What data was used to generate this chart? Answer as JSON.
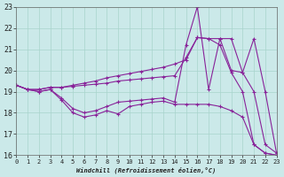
{
  "xlabel": "Windchill (Refroidissement éolien,°C)",
  "background_color": "#cbe9e9",
  "grid_color": "#a8d4cc",
  "line_color": "#882299",
  "xlim": [
    0,
    23
  ],
  "ylim": [
    16,
    23
  ],
  "xticks": [
    0,
    1,
    2,
    3,
    4,
    5,
    6,
    7,
    8,
    9,
    10,
    11,
    12,
    13,
    14,
    15,
    16,
    17,
    18,
    19,
    20,
    21,
    22,
    23
  ],
  "yticks": [
    16,
    17,
    18,
    19,
    20,
    21,
    22,
    23
  ],
  "line1_x": [
    0,
    1,
    2,
    3,
    4,
    5,
    6,
    7,
    8,
    9,
    10,
    11,
    12,
    13,
    14,
    15,
    16,
    17,
    18,
    19,
    20,
    21,
    22,
    23
  ],
  "line1_y": [
    19.3,
    19.1,
    19.1,
    19.2,
    19.2,
    19.3,
    19.4,
    19.5,
    19.65,
    19.75,
    19.85,
    19.95,
    20.05,
    20.15,
    20.3,
    20.5,
    21.55,
    21.5,
    21.5,
    20.0,
    19.9,
    21.5,
    19.0,
    16.1
  ],
  "line2_x": [
    0,
    1,
    2,
    3,
    4,
    5,
    6,
    7,
    8,
    9,
    10,
    11,
    12,
    13,
    14,
    15,
    16,
    17,
    18,
    19,
    20,
    21,
    22,
    23
  ],
  "line2_y": [
    19.3,
    19.1,
    19.1,
    19.2,
    19.2,
    19.25,
    19.3,
    19.35,
    19.4,
    19.5,
    19.55,
    19.6,
    19.65,
    19.7,
    19.75,
    20.6,
    21.55,
    21.5,
    21.2,
    19.9,
    19.0,
    16.5,
    16.1,
    16.0
  ],
  "line3_x": [
    0,
    1,
    2,
    3,
    4,
    5,
    6,
    7,
    8,
    9,
    10,
    11,
    12,
    13,
    14,
    15,
    16,
    17,
    18,
    19,
    20,
    21,
    22,
    23
  ],
  "line3_y": [
    19.3,
    19.1,
    19.0,
    19.1,
    18.7,
    18.2,
    18.0,
    18.1,
    18.3,
    18.5,
    18.55,
    18.6,
    18.65,
    18.7,
    18.5,
    21.2,
    23.0,
    19.1,
    21.5,
    21.5,
    19.9,
    19.0,
    16.5,
    16.1
  ],
  "line4_x": [
    0,
    1,
    2,
    3,
    4,
    5,
    6,
    7,
    8,
    9,
    10,
    11,
    12,
    13,
    14,
    15,
    16,
    17,
    18,
    19,
    20,
    21,
    22,
    23
  ],
  "line4_y": [
    19.3,
    19.1,
    19.0,
    19.1,
    18.6,
    18.0,
    17.8,
    17.9,
    18.1,
    17.95,
    18.3,
    18.4,
    18.5,
    18.55,
    18.4,
    18.4,
    18.4,
    18.4,
    18.3,
    18.1,
    17.8,
    16.5,
    16.1,
    16.0
  ]
}
